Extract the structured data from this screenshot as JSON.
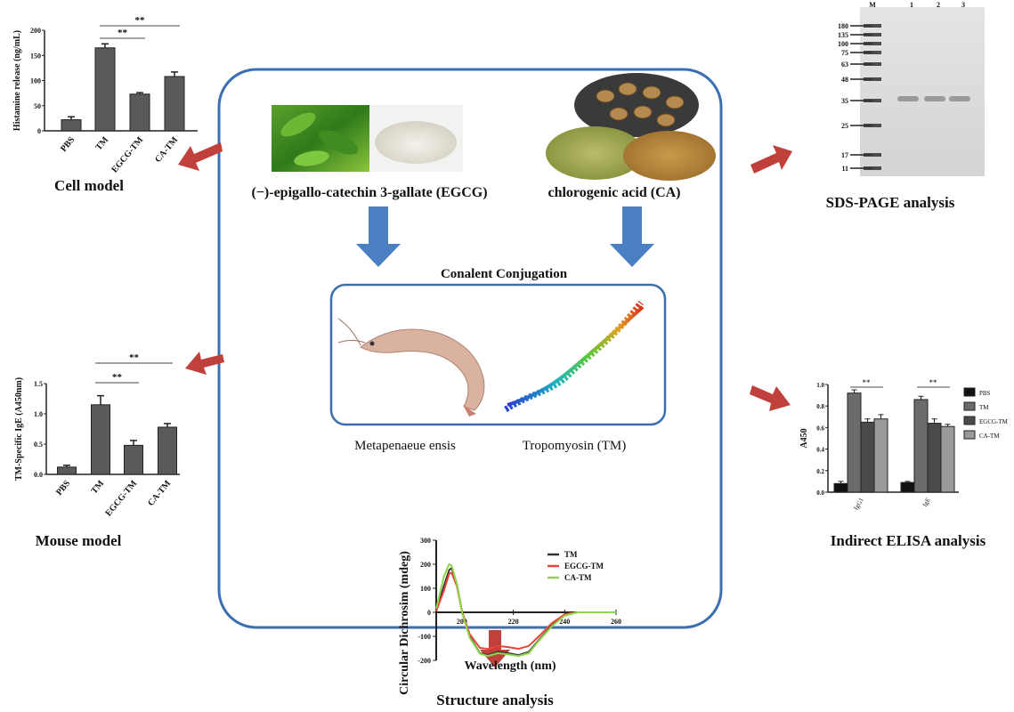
{
  "center": {
    "egcg_label": "(−)-epigallo-catechin 3-gallate (EGCG)",
    "ca_label": "chlorogenic acid (CA)",
    "conjugation_label": "Conalent Conjugation",
    "shrimp_label": "Metapenaeue ensis",
    "protein_label": "Tropomyosin (TM)"
  },
  "panels": {
    "cell": "Cell model",
    "mouse": "Mouse model",
    "sds": "SDS-PAGE analysis",
    "elisa": "Indirect ELISA analysis",
    "structure": "Structure analysis"
  },
  "colors": {
    "box": "#3b6fb0",
    "down_arrow": "#4a7fc1",
    "red_arrow": "#c0403c",
    "bar": "#555555"
  },
  "chart_data": [
    {
      "id": "cell",
      "type": "bar",
      "ylabel": "Histamine release (ng/mL)",
      "categories": [
        "PBS",
        "TM",
        "EGCG-TM",
        "CA-TM"
      ],
      "values": [
        22,
        165,
        73,
        108
      ],
      "errors": [
        6,
        8,
        3,
        9
      ],
      "ylim": [
        0,
        200
      ],
      "yticks": [
        "0",
        "50",
        "100",
        "150",
        "200"
      ],
      "significance": [
        {
          "from": "TM",
          "to": "EGCG-TM",
          "label": "**"
        },
        {
          "from": "TM",
          "to": "CA-TM",
          "label": "**"
        }
      ]
    },
    {
      "id": "mouse",
      "type": "bar",
      "ylabel": "TM-Specific IgE (A450nm)",
      "categories": [
        "PBS",
        "TM",
        "EGCG-TM",
        "CA-TM"
      ],
      "values": [
        0.12,
        1.15,
        0.48,
        0.78
      ],
      "errors": [
        0.03,
        0.15,
        0.08,
        0.06
      ],
      "ylim": [
        0,
        1.5
      ],
      "yticks": [
        "0.0",
        "0.5",
        "1.0",
        "1.5"
      ],
      "significance": [
        {
          "from": "TM",
          "to": "EGCG-TM",
          "label": "**"
        },
        {
          "from": "TM",
          "to": "CA-TM",
          "label": "**"
        }
      ]
    },
    {
      "id": "elisa",
      "type": "bar",
      "ylabel": "A450",
      "categories": [
        "IgG1",
        "IgE"
      ],
      "series": [
        {
          "name": "PBS",
          "values": [
            0.08,
            0.09
          ],
          "errors": [
            0.02,
            0.01
          ],
          "color": "#111111"
        },
        {
          "name": "TM",
          "values": [
            0.92,
            0.86
          ],
          "errors": [
            0.03,
            0.03
          ],
          "color": "#6b6b6b"
        },
        {
          "name": "EGCG-TM",
          "values": [
            0.65,
            0.64
          ],
          "errors": [
            0.03,
            0.04
          ],
          "color": "#4a4a4a"
        },
        {
          "name": "CA-TM",
          "values": [
            0.68,
            0.61
          ],
          "errors": [
            0.04,
            0.02
          ],
          "color": "#9a9a9a"
        }
      ],
      "ylim": [
        0,
        1.0
      ],
      "yticks": [
        "0.0",
        "0.2",
        "0.4",
        "0.6",
        "0.8",
        "1.0"
      ],
      "significance": [
        "**",
        "**"
      ],
      "legend": "right"
    },
    {
      "id": "cd",
      "type": "line",
      "xlabel": "Wavelength (nm)",
      "ylabel": "Circular Dichrosim (mdeg)",
      "xlim": [
        190,
        260
      ],
      "ylim": [
        -200,
        300
      ],
      "xticks": [
        "200",
        "220",
        "240",
        "260"
      ],
      "yticks": [
        "-200",
        "-100",
        "0",
        "100",
        "200",
        "300"
      ],
      "legend": "top-right",
      "x": [
        190,
        193,
        195,
        196,
        198,
        200,
        203,
        207,
        210,
        214,
        218,
        222,
        226,
        230,
        235,
        240,
        245,
        260
      ],
      "series": [
        {
          "name": "TM",
          "color": "#333333",
          "values": [
            5,
            110,
            175,
            185,
            120,
            5,
            -100,
            -170,
            -178,
            -165,
            -170,
            -178,
            -165,
            -115,
            -55,
            -12,
            0,
            0
          ]
        },
        {
          "name": "EGCG-TM",
          "color": "#e8453c",
          "values": [
            5,
            90,
            160,
            165,
            110,
            5,
            -90,
            -148,
            -152,
            -140,
            -145,
            -152,
            -140,
            -100,
            -45,
            -8,
            0,
            0
          ]
        },
        {
          "name": "CA-TM",
          "color": "#8fd64a",
          "values": [
            15,
            150,
            200,
            195,
            120,
            0,
            -105,
            -172,
            -182,
            -170,
            -175,
            -182,
            -170,
            -118,
            -58,
            -14,
            0,
            0
          ]
        }
      ]
    }
  ],
  "sds": {
    "lanes": [
      "M",
      "1",
      "2",
      "3"
    ],
    "markers": [
      "180",
      "135",
      "100",
      "75",
      "63",
      "48",
      "35",
      "25",
      "17",
      "11"
    ]
  }
}
